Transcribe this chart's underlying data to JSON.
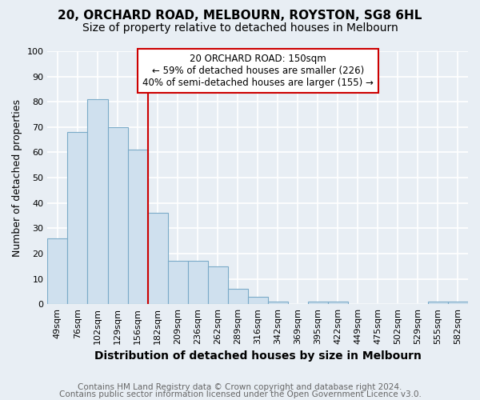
{
  "title1": "20, ORCHARD ROAD, MELBOURN, ROYSTON, SG8 6HL",
  "title2": "Size of property relative to detached houses in Melbourn",
  "xlabel": "Distribution of detached houses by size in Melbourn",
  "ylabel": "Number of detached properties",
  "categories": [
    "49sqm",
    "76sqm",
    "102sqm",
    "129sqm",
    "156sqm",
    "182sqm",
    "209sqm",
    "236sqm",
    "262sqm",
    "289sqm",
    "316sqm",
    "342sqm",
    "369sqm",
    "395sqm",
    "422sqm",
    "449sqm",
    "475sqm",
    "502sqm",
    "529sqm",
    "555sqm",
    "582sqm"
  ],
  "values": [
    26,
    68,
    81,
    70,
    61,
    36,
    17,
    17,
    15,
    6,
    3,
    1,
    0,
    1,
    1,
    0,
    0,
    0,
    0,
    1,
    1
  ],
  "bar_color": "#cfe0ee",
  "bar_edge_color": "#7aaac8",
  "annotation_line1": "20 ORCHARD ROAD: 150sqm",
  "annotation_line2": "← 59% of detached houses are smaller (226)",
  "annotation_line3": "40% of semi-detached houses are larger (155) →",
  "annotation_box_color": "#ffffff",
  "annotation_box_edge": "#cc0000",
  "vline_color": "#cc0000",
  "vline_x": 4.5,
  "ylim": [
    0,
    100
  ],
  "yticks": [
    0,
    10,
    20,
    30,
    40,
    50,
    60,
    70,
    80,
    90,
    100
  ],
  "footnote1": "Contains HM Land Registry data © Crown copyright and database right 2024.",
  "footnote2": "Contains public sector information licensed under the Open Government Licence v3.0.",
  "background_color": "#e8eef4",
  "plot_bg_color": "#e8eef4",
  "grid_color": "#ffffff",
  "title1_fontsize": 11,
  "title2_fontsize": 10,
  "xlabel_fontsize": 10,
  "ylabel_fontsize": 9,
  "footnote_fontsize": 7.5,
  "annot_fontsize": 8.5,
  "tick_fontsize": 8
}
